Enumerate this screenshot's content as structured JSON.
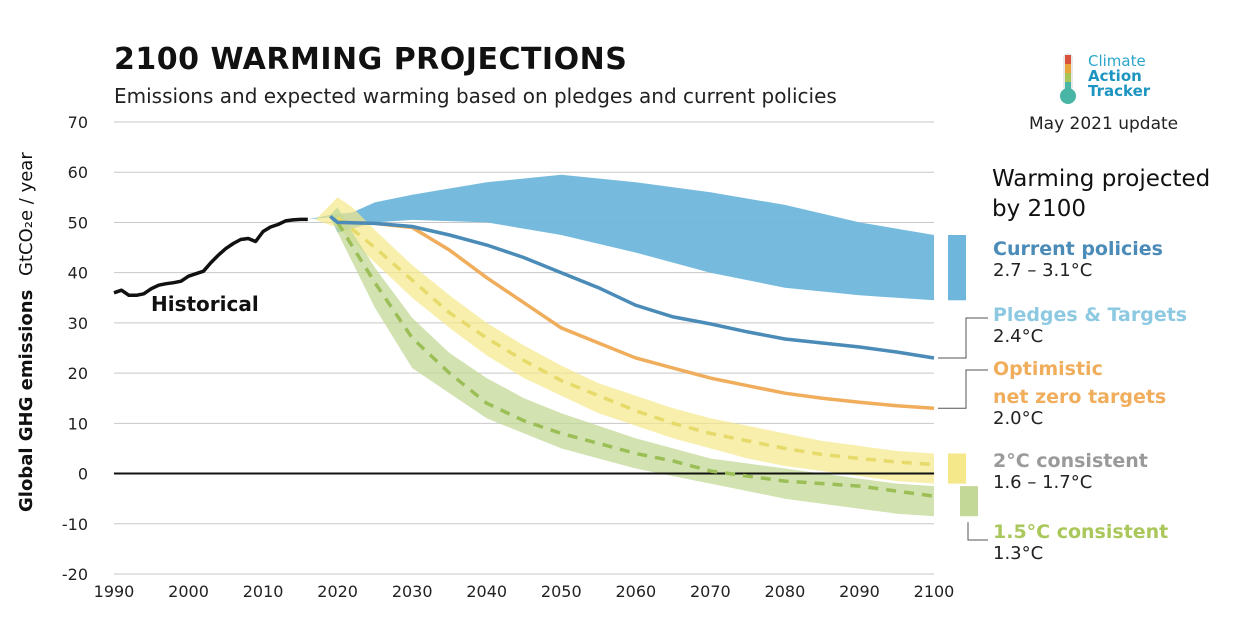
{
  "header": {
    "title": "2100 WARMING PROJECTIONS",
    "subtitle": "Emissions and expected warming based on pledges and current policies"
  },
  "logo": {
    "line1": "Climate",
    "line2": "Action",
    "line3": "Tracker",
    "update": "May 2021 update"
  },
  "legend": {
    "heading": "Warming projected by 2100",
    "current_policies": {
      "name": "Current policies",
      "value": "2.7 – 3.1°C",
      "color": "#4a8bb8"
    },
    "pledges": {
      "name": "Pledges & Targets",
      "value": "2.4°C",
      "color": "#8ec9e2"
    },
    "optimistic": {
      "name_line1": "Optimistic",
      "name_line2": "net zero targets",
      "value": "2.0°C",
      "color": "#f0ad5c"
    },
    "two_c": {
      "name": "2°C consistent",
      "value": "1.6 – 1.7°C",
      "color": "#9a9a9a"
    },
    "one_five_c": {
      "name": "1.5°C consistent",
      "value": "1.3°C",
      "color": "#a9c75a"
    }
  },
  "chart_data": {
    "type": "area",
    "ylabel_main": "Global GHG emissions",
    "ylabel_unit": "GtCO₂e / year",
    "xlim": [
      1990,
      2100
    ],
    "ylim": [
      -20,
      70
    ],
    "xticks": [
      1990,
      2000,
      2010,
      2020,
      2030,
      2040,
      2050,
      2060,
      2070,
      2080,
      2090,
      2100
    ],
    "yticks": [
      -20,
      -10,
      0,
      10,
      20,
      30,
      40,
      50,
      60,
      70
    ],
    "grid": true,
    "annotation": "Historical",
    "series": [
      {
        "name": "Historical",
        "kind": "line",
        "color": "#111111",
        "points": [
          [
            1990,
            36
          ],
          [
            1991,
            36.5
          ],
          [
            1992,
            35.5
          ],
          [
            1993,
            35.5
          ],
          [
            1994,
            35.8
          ],
          [
            1995,
            36.8
          ],
          [
            1996,
            37.5
          ],
          [
            1997,
            37.8
          ],
          [
            1998,
            38
          ],
          [
            1999,
            38.3
          ],
          [
            2000,
            39.3
          ],
          [
            2001,
            39.8
          ],
          [
            2002,
            40.3
          ],
          [
            2003,
            42
          ],
          [
            2004,
            43.5
          ],
          [
            2005,
            44.8
          ],
          [
            2006,
            45.8
          ],
          [
            2007,
            46.6
          ],
          [
            2008,
            46.8
          ],
          [
            2009,
            46.2
          ],
          [
            2010,
            48.2
          ],
          [
            2011,
            49.1
          ],
          [
            2012,
            49.6
          ],
          [
            2013,
            50.3
          ],
          [
            2014,
            50.5
          ],
          [
            2015,
            50.6
          ],
          [
            2016,
            50.6
          ]
        ]
      },
      {
        "name": "Current policies",
        "kind": "band",
        "color": "#6fb6dc",
        "upper": [
          [
            2016,
            50.6
          ],
          [
            2019,
            51.5
          ],
          [
            2022,
            52
          ],
          [
            2025,
            54
          ],
          [
            2030,
            55.5
          ],
          [
            2040,
            58
          ],
          [
            2050,
            59.5
          ],
          [
            2060,
            58
          ],
          [
            2070,
            56
          ],
          [
            2080,
            53.5
          ],
          [
            2090,
            50
          ],
          [
            2100,
            47.5
          ]
        ],
        "lower": [
          [
            2016,
            50.6
          ],
          [
            2019,
            51
          ],
          [
            2020,
            48
          ],
          [
            2025,
            50
          ],
          [
            2030,
            50.5
          ],
          [
            2040,
            50
          ],
          [
            2050,
            47.5
          ],
          [
            2060,
            44
          ],
          [
            2070,
            40
          ],
          [
            2080,
            37
          ],
          [
            2090,
            35.5
          ],
          [
            2100,
            34.5
          ]
        ]
      },
      {
        "name": "Pledges & Targets",
        "kind": "line",
        "color": "#4a8bb8",
        "points": [
          [
            2019,
            51.2
          ],
          [
            2020,
            50
          ],
          [
            2025,
            49.8
          ],
          [
            2030,
            49.2
          ],
          [
            2035,
            47.5
          ],
          [
            2040,
            45.5
          ],
          [
            2045,
            43
          ],
          [
            2050,
            40
          ],
          [
            2055,
            37
          ],
          [
            2060,
            33.5
          ],
          [
            2065,
            31.2
          ],
          [
            2070,
            29.8
          ],
          [
            2075,
            28.2
          ],
          [
            2080,
            26.8
          ],
          [
            2085,
            26
          ],
          [
            2090,
            25.2
          ],
          [
            2095,
            24.2
          ],
          [
            2100,
            23
          ]
        ]
      },
      {
        "name": "Optimistic net zero targets",
        "kind": "line",
        "color": "#f0ad5c",
        "points": [
          [
            2020,
            50
          ],
          [
            2025,
            49.8
          ],
          [
            2030,
            49
          ],
          [
            2035,
            44.5
          ],
          [
            2040,
            39
          ],
          [
            2045,
            34
          ],
          [
            2050,
            29
          ],
          [
            2055,
            26
          ],
          [
            2060,
            23
          ],
          [
            2065,
            21
          ],
          [
            2070,
            19
          ],
          [
            2075,
            17.5
          ],
          [
            2080,
            16
          ],
          [
            2085,
            15
          ],
          [
            2090,
            14.2
          ],
          [
            2095,
            13.5
          ],
          [
            2100,
            13
          ]
        ]
      },
      {
        "name": "2°C consistent",
        "kind": "band_with_median",
        "color": "#f5e88a",
        "median_color": "#e6da6a",
        "upper": [
          [
            2017,
            50.5
          ],
          [
            2020,
            55
          ],
          [
            2022,
            53
          ],
          [
            2025,
            48.5
          ],
          [
            2030,
            41.5
          ],
          [
            2035,
            35.5
          ],
          [
            2040,
            30
          ],
          [
            2045,
            25.5
          ],
          [
            2050,
            21.5
          ],
          [
            2055,
            18
          ],
          [
            2060,
            15.5
          ],
          [
            2065,
            13
          ],
          [
            2070,
            11
          ],
          [
            2075,
            9.5
          ],
          [
            2080,
            8
          ],
          [
            2085,
            6.5
          ],
          [
            2090,
            5.5
          ],
          [
            2095,
            4.5
          ],
          [
            2100,
            4
          ]
        ],
        "median": [
          [
            2020,
            51
          ],
          [
            2025,
            45
          ],
          [
            2030,
            38.5
          ],
          [
            2035,
            32
          ],
          [
            2040,
            27
          ],
          [
            2045,
            22.5
          ],
          [
            2050,
            18.5
          ],
          [
            2055,
            15.5
          ],
          [
            2060,
            12.5
          ],
          [
            2065,
            10
          ],
          [
            2070,
            8
          ],
          [
            2075,
            6.5
          ],
          [
            2080,
            5
          ],
          [
            2085,
            3.8
          ],
          [
            2090,
            3
          ],
          [
            2095,
            2.3
          ],
          [
            2100,
            1.8
          ]
        ],
        "lower": [
          [
            2017,
            50.5
          ],
          [
            2020,
            49
          ],
          [
            2025,
            42
          ],
          [
            2030,
            35
          ],
          [
            2035,
            29
          ],
          [
            2040,
            23.5
          ],
          [
            2045,
            19
          ],
          [
            2050,
            15.5
          ],
          [
            2055,
            12
          ],
          [
            2060,
            9.5
          ],
          [
            2065,
            7
          ],
          [
            2070,
            5
          ],
          [
            2075,
            3
          ],
          [
            2080,
            1.5
          ],
          [
            2085,
            0.5
          ],
          [
            2090,
            -0.5
          ],
          [
            2095,
            -1.5
          ],
          [
            2100,
            -2
          ]
        ]
      },
      {
        "name": "1.5°C consistent",
        "kind": "band_with_median",
        "color": "#c3d896",
        "median_color": "#9bbf56",
        "upper": [
          [
            2019,
            51.5
          ],
          [
            2020,
            53
          ],
          [
            2022,
            48
          ],
          [
            2025,
            41
          ],
          [
            2030,
            31
          ],
          [
            2035,
            24
          ],
          [
            2040,
            19
          ],
          [
            2045,
            15
          ],
          [
            2050,
            12
          ],
          [
            2055,
            9.5
          ],
          [
            2060,
            7
          ],
          [
            2065,
            5
          ],
          [
            2070,
            3
          ],
          [
            2075,
            2
          ],
          [
            2080,
            1
          ],
          [
            2085,
            0
          ],
          [
            2090,
            -1
          ],
          [
            2095,
            -2
          ],
          [
            2100,
            -2.5
          ]
        ],
        "median": [
          [
            2020,
            50
          ],
          [
            2025,
            38
          ],
          [
            2030,
            27
          ],
          [
            2035,
            20
          ],
          [
            2040,
            14
          ],
          [
            2045,
            10.5
          ],
          [
            2050,
            8
          ],
          [
            2055,
            6
          ],
          [
            2060,
            4
          ],
          [
            2065,
            2.5
          ],
          [
            2070,
            0.5
          ],
          [
            2075,
            -0.5
          ],
          [
            2080,
            -1.5
          ],
          [
            2085,
            -2
          ],
          [
            2090,
            -2.5
          ],
          [
            2095,
            -3.5
          ],
          [
            2100,
            -4.5
          ]
        ],
        "lower": [
          [
            2019,
            51.5
          ],
          [
            2020,
            48
          ],
          [
            2025,
            33
          ],
          [
            2030,
            21
          ],
          [
            2035,
            16
          ],
          [
            2040,
            11
          ],
          [
            2045,
            8
          ],
          [
            2050,
            5
          ],
          [
            2055,
            3
          ],
          [
            2060,
            1
          ],
          [
            2065,
            -0.5
          ],
          [
            2070,
            -2
          ],
          [
            2075,
            -3.5
          ],
          [
            2080,
            -5
          ],
          [
            2085,
            -6
          ],
          [
            2090,
            -7
          ],
          [
            2095,
            -8
          ],
          [
            2100,
            -8.5
          ]
        ]
      }
    ]
  }
}
